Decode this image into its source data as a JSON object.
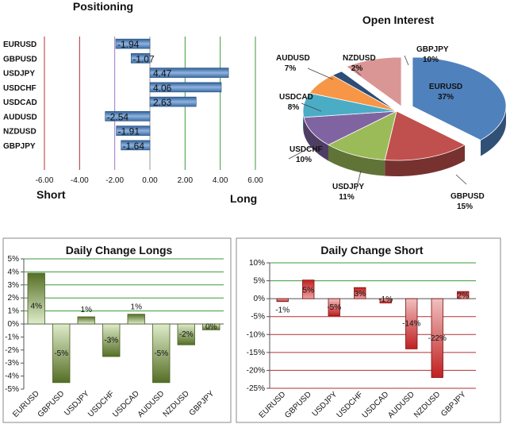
{
  "chart_data": [
    {
      "type": "bar",
      "orientation": "horizontal",
      "title": "Positioning",
      "categories": [
        "EURUSD",
        "GBPUSD",
        "USDJPY",
        "USDCHF",
        "USDCAD",
        "AUDUSD",
        "NZDUSD",
        "GBPJPY"
      ],
      "values": [
        -1.94,
        -1.07,
        4.47,
        4.06,
        2.63,
        -2.54,
        -1.91,
        -1.64
      ],
      "value_labels": [
        "-1.94",
        "-1.07",
        "4.47",
        "4.06",
        "2.63",
        "-2.54",
        "-1.91",
        "-1.64"
      ],
      "xlim": [
        -6,
        6
      ],
      "xticks": [
        "-6.00",
        "-4.00",
        "-2.00",
        "0.00",
        "2.00",
        "4.00",
        "6.00"
      ],
      "left_label": "Short",
      "right_label": "Long",
      "colors": {
        "bar": "#5b86b8",
        "short_line": "#b03030",
        "long_line": "#3a9a3a"
      },
      "grid": true
    },
    {
      "type": "pie",
      "title": "Open Interest",
      "slices": [
        {
          "name": "EURUSD",
          "value": 37,
          "label": "37%",
          "color": "#4f81bd"
        },
        {
          "name": "GBPUSD",
          "value": 15,
          "label": "15%",
          "color": "#c0504d"
        },
        {
          "name": "USDJPY",
          "value": 11,
          "label": "11%",
          "color": "#9bbb59"
        },
        {
          "name": "USDCHF",
          "value": 10,
          "label": "10%",
          "color": "#8064a2"
        },
        {
          "name": "USDCAD",
          "value": 8,
          "label": "8%",
          "color": "#4bacc6"
        },
        {
          "name": "AUDUSD",
          "value": 7,
          "label": "7%",
          "color": "#f79646"
        },
        {
          "name": "NZDUSD",
          "value": 2,
          "label": "2%",
          "color": "#2c4d75"
        },
        {
          "name": "GBPJPY",
          "value": 10,
          "label": "10%",
          "color": "#d99694"
        }
      ]
    },
    {
      "type": "bar",
      "title": "Daily Change Longs",
      "categories": [
        "EURUSD",
        "GBPUSD",
        "USDJPY",
        "USDCHF",
        "USDCAD",
        "AUDUSD",
        "NZDUSD",
        "GBPJPY"
      ],
      "values": [
        4,
        -5,
        1,
        -3,
        1,
        -5,
        -2,
        0
      ],
      "plot_values": [
        3.9,
        -4.5,
        0.55,
        -2.5,
        0.75,
        -4.5,
        -1.6,
        -0.45
      ],
      "value_labels": [
        "4%",
        "-5%",
        "1%",
        "-3%",
        "1%",
        "-5%",
        "-2%",
        "0%"
      ],
      "ylim": [
        -5,
        5
      ],
      "yticks": [
        "-5%",
        "-4%",
        "-3%",
        "-2%",
        "-1%",
        "0%",
        "1%",
        "2%",
        "3%",
        "4%",
        "5%"
      ],
      "colors": {
        "bar": "#76923c",
        "grid": "#3a9a3a"
      },
      "grid": true
    },
    {
      "type": "bar",
      "title": "Daily Change Short",
      "categories": [
        "EURUSD",
        "GBPUSD",
        "USDJPY",
        "USDCHF",
        "USDCAD",
        "AUDUSD",
        "NZDUSD",
        "GBPJPY"
      ],
      "values": [
        -1,
        5,
        -5,
        3,
        -1,
        -14,
        -22,
        2
      ],
      "plot_values": [
        -0.8,
        5.2,
        -4.8,
        3.1,
        -1.2,
        -14,
        -22,
        2
      ],
      "value_labels": [
        "-1%",
        "5%",
        "-5%",
        "3%",
        "-1%",
        "-14%",
        "-22%",
        "2%"
      ],
      "ylim": [
        -25,
        10
      ],
      "yticks": [
        "-25%",
        "-20%",
        "-15%",
        "-10%",
        "-5%",
        "0%",
        "5%",
        "10%"
      ],
      "colors": {
        "bar": "#d03030",
        "grid_pos": "#3a9a3a",
        "grid_neg": "#b03030"
      },
      "grid": true
    }
  ]
}
